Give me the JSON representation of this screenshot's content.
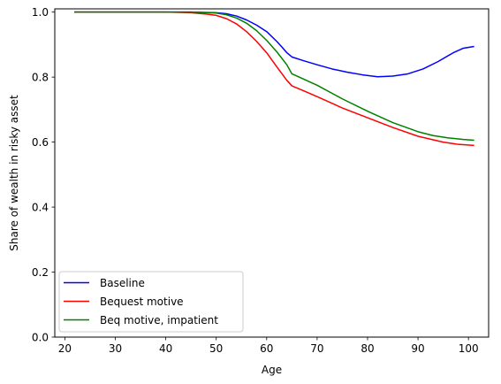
{
  "chart_data": {
    "type": "line",
    "title": "",
    "xlabel": "Age",
    "ylabel": "Share of wealth in risky asset",
    "xlim": [
      18,
      104
    ],
    "ylim": [
      0.0,
      1.01
    ],
    "xticks": [
      20,
      30,
      40,
      50,
      60,
      70,
      80,
      90,
      100
    ],
    "xtick_labels": [
      "20",
      "30",
      "40",
      "50",
      "60",
      "70",
      "80",
      "90",
      "100"
    ],
    "yticks": [
      0.0,
      0.2,
      0.4,
      0.6,
      0.8,
      1.0
    ],
    "ytick_labels": [
      "0.0",
      "0.2",
      "0.4",
      "0.6",
      "0.8",
      "1.0"
    ],
    "grid": false,
    "legend_position": "lower-left",
    "series": [
      {
        "name": "Baseline",
        "color": "#0000ff",
        "x": [
          22,
          30,
          40,
          45,
          50,
          52,
          54,
          56,
          58,
          60,
          62,
          63,
          64,
          65,
          67,
          70,
          73,
          76,
          79,
          82,
          85,
          88,
          91,
          94,
          97,
          99,
          101
        ],
        "y": [
          1.0,
          1.0,
          1.0,
          1.0,
          0.998,
          0.995,
          0.988,
          0.976,
          0.96,
          0.94,
          0.91,
          0.893,
          0.875,
          0.862,
          0.852,
          0.838,
          0.825,
          0.815,
          0.807,
          0.801,
          0.803,
          0.81,
          0.825,
          0.848,
          0.875,
          0.889,
          0.894
        ]
      },
      {
        "name": "Bequest motive",
        "color": "#ff0000",
        "x": [
          22,
          30,
          40,
          45,
          48,
          50,
          52,
          54,
          56,
          58,
          60,
          62,
          64,
          65,
          67,
          70,
          75,
          80,
          85,
          90,
          95,
          98,
          101
        ],
        "y": [
          1.0,
          1.0,
          1.0,
          0.998,
          0.994,
          0.99,
          0.98,
          0.964,
          0.94,
          0.91,
          0.875,
          0.832,
          0.79,
          0.773,
          0.76,
          0.74,
          0.705,
          0.675,
          0.645,
          0.618,
          0.6,
          0.593,
          0.59
        ]
      },
      {
        "name": "Beq motive, impatient",
        "color": "#008000",
        "x": [
          22,
          30,
          40,
          45,
          50,
          52,
          54,
          56,
          58,
          60,
          62,
          64,
          65,
          67,
          70,
          75,
          80,
          85,
          90,
          93,
          96,
          99,
          101
        ],
        "y": [
          1.0,
          1.0,
          1.0,
          1.0,
          0.997,
          0.992,
          0.982,
          0.966,
          0.943,
          0.913,
          0.878,
          0.838,
          0.81,
          0.796,
          0.775,
          0.733,
          0.695,
          0.66,
          0.632,
          0.62,
          0.613,
          0.608,
          0.606
        ]
      }
    ]
  }
}
